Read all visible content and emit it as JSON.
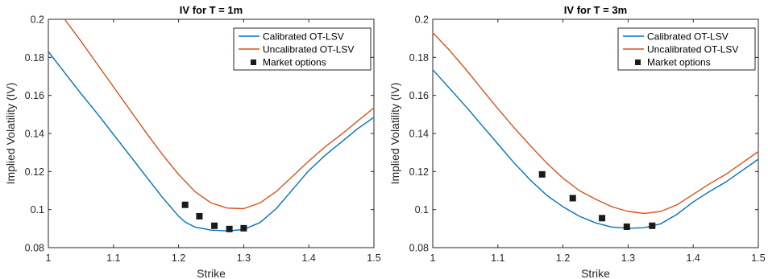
{
  "chart_data": [
    {
      "type": "line",
      "title": "IV for T = 1m",
      "xlabel": "Strike",
      "ylabel": "Implied Volatility (IV)",
      "xlim": [
        1,
        1.5
      ],
      "ylim": [
        0.08,
        0.2
      ],
      "xticks": [
        "1",
        "1.1",
        "1.2",
        "1.3",
        "1.4",
        "1.5"
      ],
      "yticks": [
        "0.08",
        "0.1",
        "0.12",
        "0.14",
        "0.16",
        "0.18",
        "0.2"
      ],
      "grid": false,
      "legend_position": "top-right",
      "series": [
        {
          "name": "Calibrated OT-LSV",
          "color": "#0072BD",
          "marker": "none",
          "x": [
            1.0,
            1.025,
            1.05,
            1.075,
            1.1,
            1.125,
            1.15,
            1.175,
            1.2,
            1.21,
            1.225,
            1.25,
            1.275,
            1.3,
            1.325,
            1.35,
            1.375,
            1.4,
            1.425,
            1.45,
            1.475,
            1.5
          ],
          "y": [
            0.183,
            0.172,
            0.161,
            0.1505,
            0.1395,
            0.1285,
            0.1175,
            0.1065,
            0.0965,
            0.0935,
            0.0908,
            0.0892,
            0.0888,
            0.0895,
            0.0932,
            0.1005,
            0.1105,
            0.1205,
            0.1285,
            0.1355,
            0.1425,
            0.1485
          ]
        },
        {
          "name": "Uncalibrated OT-LSV",
          "color": "#D95319",
          "marker": "none",
          "x": [
            1.025,
            1.05,
            1.075,
            1.1,
            1.125,
            1.15,
            1.175,
            1.2,
            1.225,
            1.25,
            1.275,
            1.3,
            1.325,
            1.35,
            1.375,
            1.4,
            1.425,
            1.45,
            1.475,
            1.5
          ],
          "y": [
            0.2,
            0.1885,
            0.1765,
            0.1645,
            0.1525,
            0.1405,
            0.129,
            0.1185,
            0.1095,
            0.1035,
            0.1008,
            0.1005,
            0.1035,
            0.1095,
            0.1175,
            0.1255,
            0.133,
            0.1395,
            0.1465,
            0.1535
          ]
        },
        {
          "name": "Market options",
          "color": "#1a1a1a",
          "marker": "square",
          "x": [
            1.21,
            1.232,
            1.255,
            1.278,
            1.3
          ],
          "y": [
            0.1025,
            0.0965,
            0.0915,
            0.0898,
            0.0902
          ]
        }
      ]
    },
    {
      "type": "line",
      "title": "IV for T = 3m",
      "xlabel": "Strike",
      "ylabel": "Implied Volatility (IV)",
      "xlim": [
        1,
        1.5
      ],
      "ylim": [
        0.08,
        0.2
      ],
      "xticks": [
        "1",
        "1.1",
        "1.2",
        "1.3",
        "1.4",
        "1.5"
      ],
      "yticks": [
        "0.08",
        "0.1",
        "0.12",
        "0.14",
        "0.16",
        "0.18",
        "0.2"
      ],
      "grid": false,
      "legend_position": "top-right",
      "series": [
        {
          "name": "Calibrated OT-LSV",
          "color": "#0072BD",
          "marker": "none",
          "x": [
            1.0,
            1.025,
            1.05,
            1.075,
            1.1,
            1.125,
            1.15,
            1.175,
            1.2,
            1.225,
            1.25,
            1.275,
            1.3,
            1.325,
            1.35,
            1.375,
            1.4,
            1.425,
            1.45,
            1.475,
            1.5
          ],
          "y": [
            0.1735,
            0.164,
            0.1545,
            0.1445,
            0.1345,
            0.1245,
            0.1155,
            0.1075,
            0.1015,
            0.0965,
            0.093,
            0.0908,
            0.0902,
            0.0905,
            0.0925,
            0.0975,
            0.104,
            0.1095,
            0.1145,
            0.1205,
            0.1265
          ]
        },
        {
          "name": "Uncalibrated OT-LSV",
          "color": "#D95319",
          "marker": "none",
          "x": [
            1.0,
            1.025,
            1.05,
            1.075,
            1.1,
            1.125,
            1.15,
            1.175,
            1.2,
            1.225,
            1.25,
            1.275,
            1.3,
            1.325,
            1.35,
            1.375,
            1.4,
            1.425,
            1.45,
            1.475,
            1.5
          ],
          "y": [
            0.193,
            0.184,
            0.174,
            0.1635,
            0.153,
            0.143,
            0.1335,
            0.1245,
            0.1165,
            0.11,
            0.1055,
            0.1015,
            0.099,
            0.098,
            0.099,
            0.1025,
            0.108,
            0.1135,
            0.1185,
            0.1245,
            0.1305
          ]
        },
        {
          "name": "Market options",
          "color": "#1a1a1a",
          "marker": "square",
          "x": [
            1.168,
            1.215,
            1.26,
            1.298,
            1.337
          ],
          "y": [
            0.1185,
            0.106,
            0.0955,
            0.091,
            0.0915
          ]
        }
      ]
    }
  ]
}
